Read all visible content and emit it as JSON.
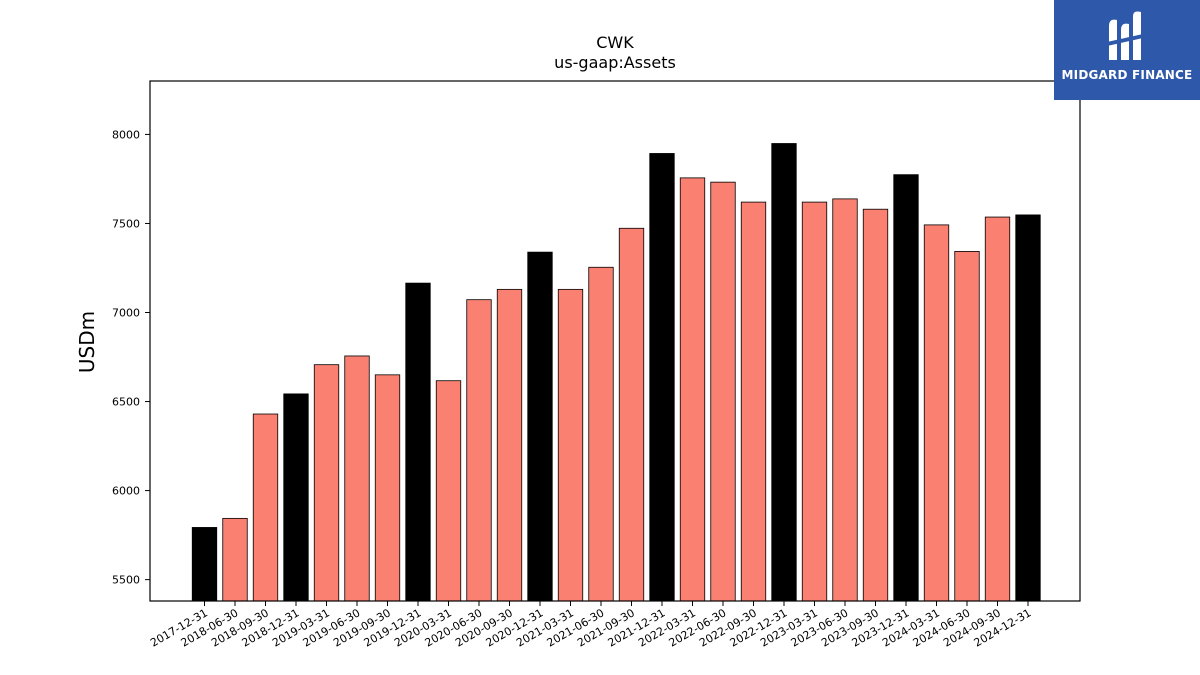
{
  "brand": {
    "name": "MIDGARD FINANCE",
    "logo_icon": "midgard-logo-icon",
    "background": "#2e58a9"
  },
  "chart_data": {
    "type": "bar",
    "title": "CWK",
    "subtitle": "us-gaap:Assets",
    "xlabel": "",
    "ylabel": "USDm",
    "ylim": [
      5380,
      8300
    ],
    "yticks": [
      5500,
      6000,
      6500,
      7000,
      7500,
      8000
    ],
    "grid": false,
    "colors": {
      "quarter": "#fa8072",
      "year_end": "#000000",
      "edge": "#000000"
    },
    "categories": [
      "2017-12-31",
      "2018-06-30",
      "2018-09-30",
      "2018-12-31",
      "2019-03-31",
      "2019-06-30",
      "2019-09-30",
      "2019-12-31",
      "2020-03-31",
      "2020-06-30",
      "2020-09-30",
      "2020-12-31",
      "2021-03-31",
      "2021-06-30",
      "2021-09-30",
      "2021-12-31",
      "2022-03-31",
      "2022-06-30",
      "2022-09-30",
      "2022-12-31",
      "2023-03-31",
      "2023-06-30",
      "2023-09-30",
      "2023-12-31",
      "2024-03-31",
      "2024-06-30",
      "2024-09-30",
      "2024-12-31"
    ],
    "values": [
      5793,
      5844,
      6430,
      6543,
      6707,
      6756,
      6650,
      7165,
      6617,
      7072,
      7130,
      7339,
      7130,
      7254,
      7473,
      7893,
      7756,
      7732,
      7620,
      7949,
      7620,
      7638,
      7580,
      7774,
      7492,
      7343,
      7536,
      7548
    ],
    "year_end": [
      true,
      false,
      false,
      true,
      false,
      false,
      false,
      true,
      false,
      false,
      false,
      true,
      false,
      false,
      false,
      true,
      false,
      false,
      false,
      true,
      false,
      false,
      false,
      true,
      false,
      false,
      false,
      true
    ]
  }
}
